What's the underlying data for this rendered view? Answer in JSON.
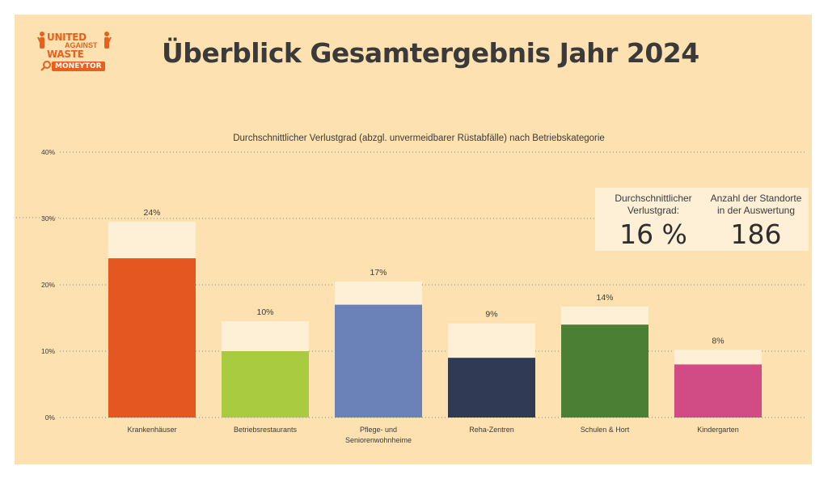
{
  "page": {
    "title": "Überblick Gesamtergebnis Jahr 2024"
  },
  "logo": {
    "line1": "UNITED",
    "line2": "AGAINST",
    "line3": "WASTE",
    "badge": "MONEYTOR"
  },
  "kpis": [
    {
      "label": "Durchschnittlicher\nVerlustgrad:",
      "value": "16 %"
    },
    {
      "label": "Anzahl der Standorte\nin der Auswertung",
      "value": "186"
    }
  ],
  "colors": {
    "background": "#fde1b0",
    "total_bar": "#fdf0d7"
  },
  "chart_data": {
    "type": "bar",
    "title": "Durchschnittlicher Verlustgrad (abzgl. unvermeidbarer Rüstabfälle) nach Betriebskategorie",
    "categories": [
      "Krankenhäuser",
      "Betriebsrestaurants",
      "Pflege- und Seniorenwohnheime",
      "Reha-Zentren",
      "Schulen & Hort",
      "Kindergarten"
    ],
    "series": [
      {
        "values": [
          29.5,
          14.5,
          20.5,
          14.2,
          16.7,
          10.2
        ],
        "color": "#fdf0d7"
      },
      {
        "values": [
          24,
          10,
          17,
          9,
          14,
          8
        ],
        "colors": [
          "#e55721",
          "#a8cb3f",
          "#6a82b7",
          "#313a54",
          "#4b7f34",
          "#d14b85"
        ]
      }
    ],
    "data_labels": [
      "24%",
      "10%",
      "17%",
      "9%",
      "14%",
      "8%"
    ],
    "yticks": [
      "0%",
      "10%",
      "20%",
      "30%",
      "40%"
    ],
    "ylim": [
      0,
      40
    ],
    "grid": true,
    "xlabel": "",
    "ylabel": ""
  }
}
